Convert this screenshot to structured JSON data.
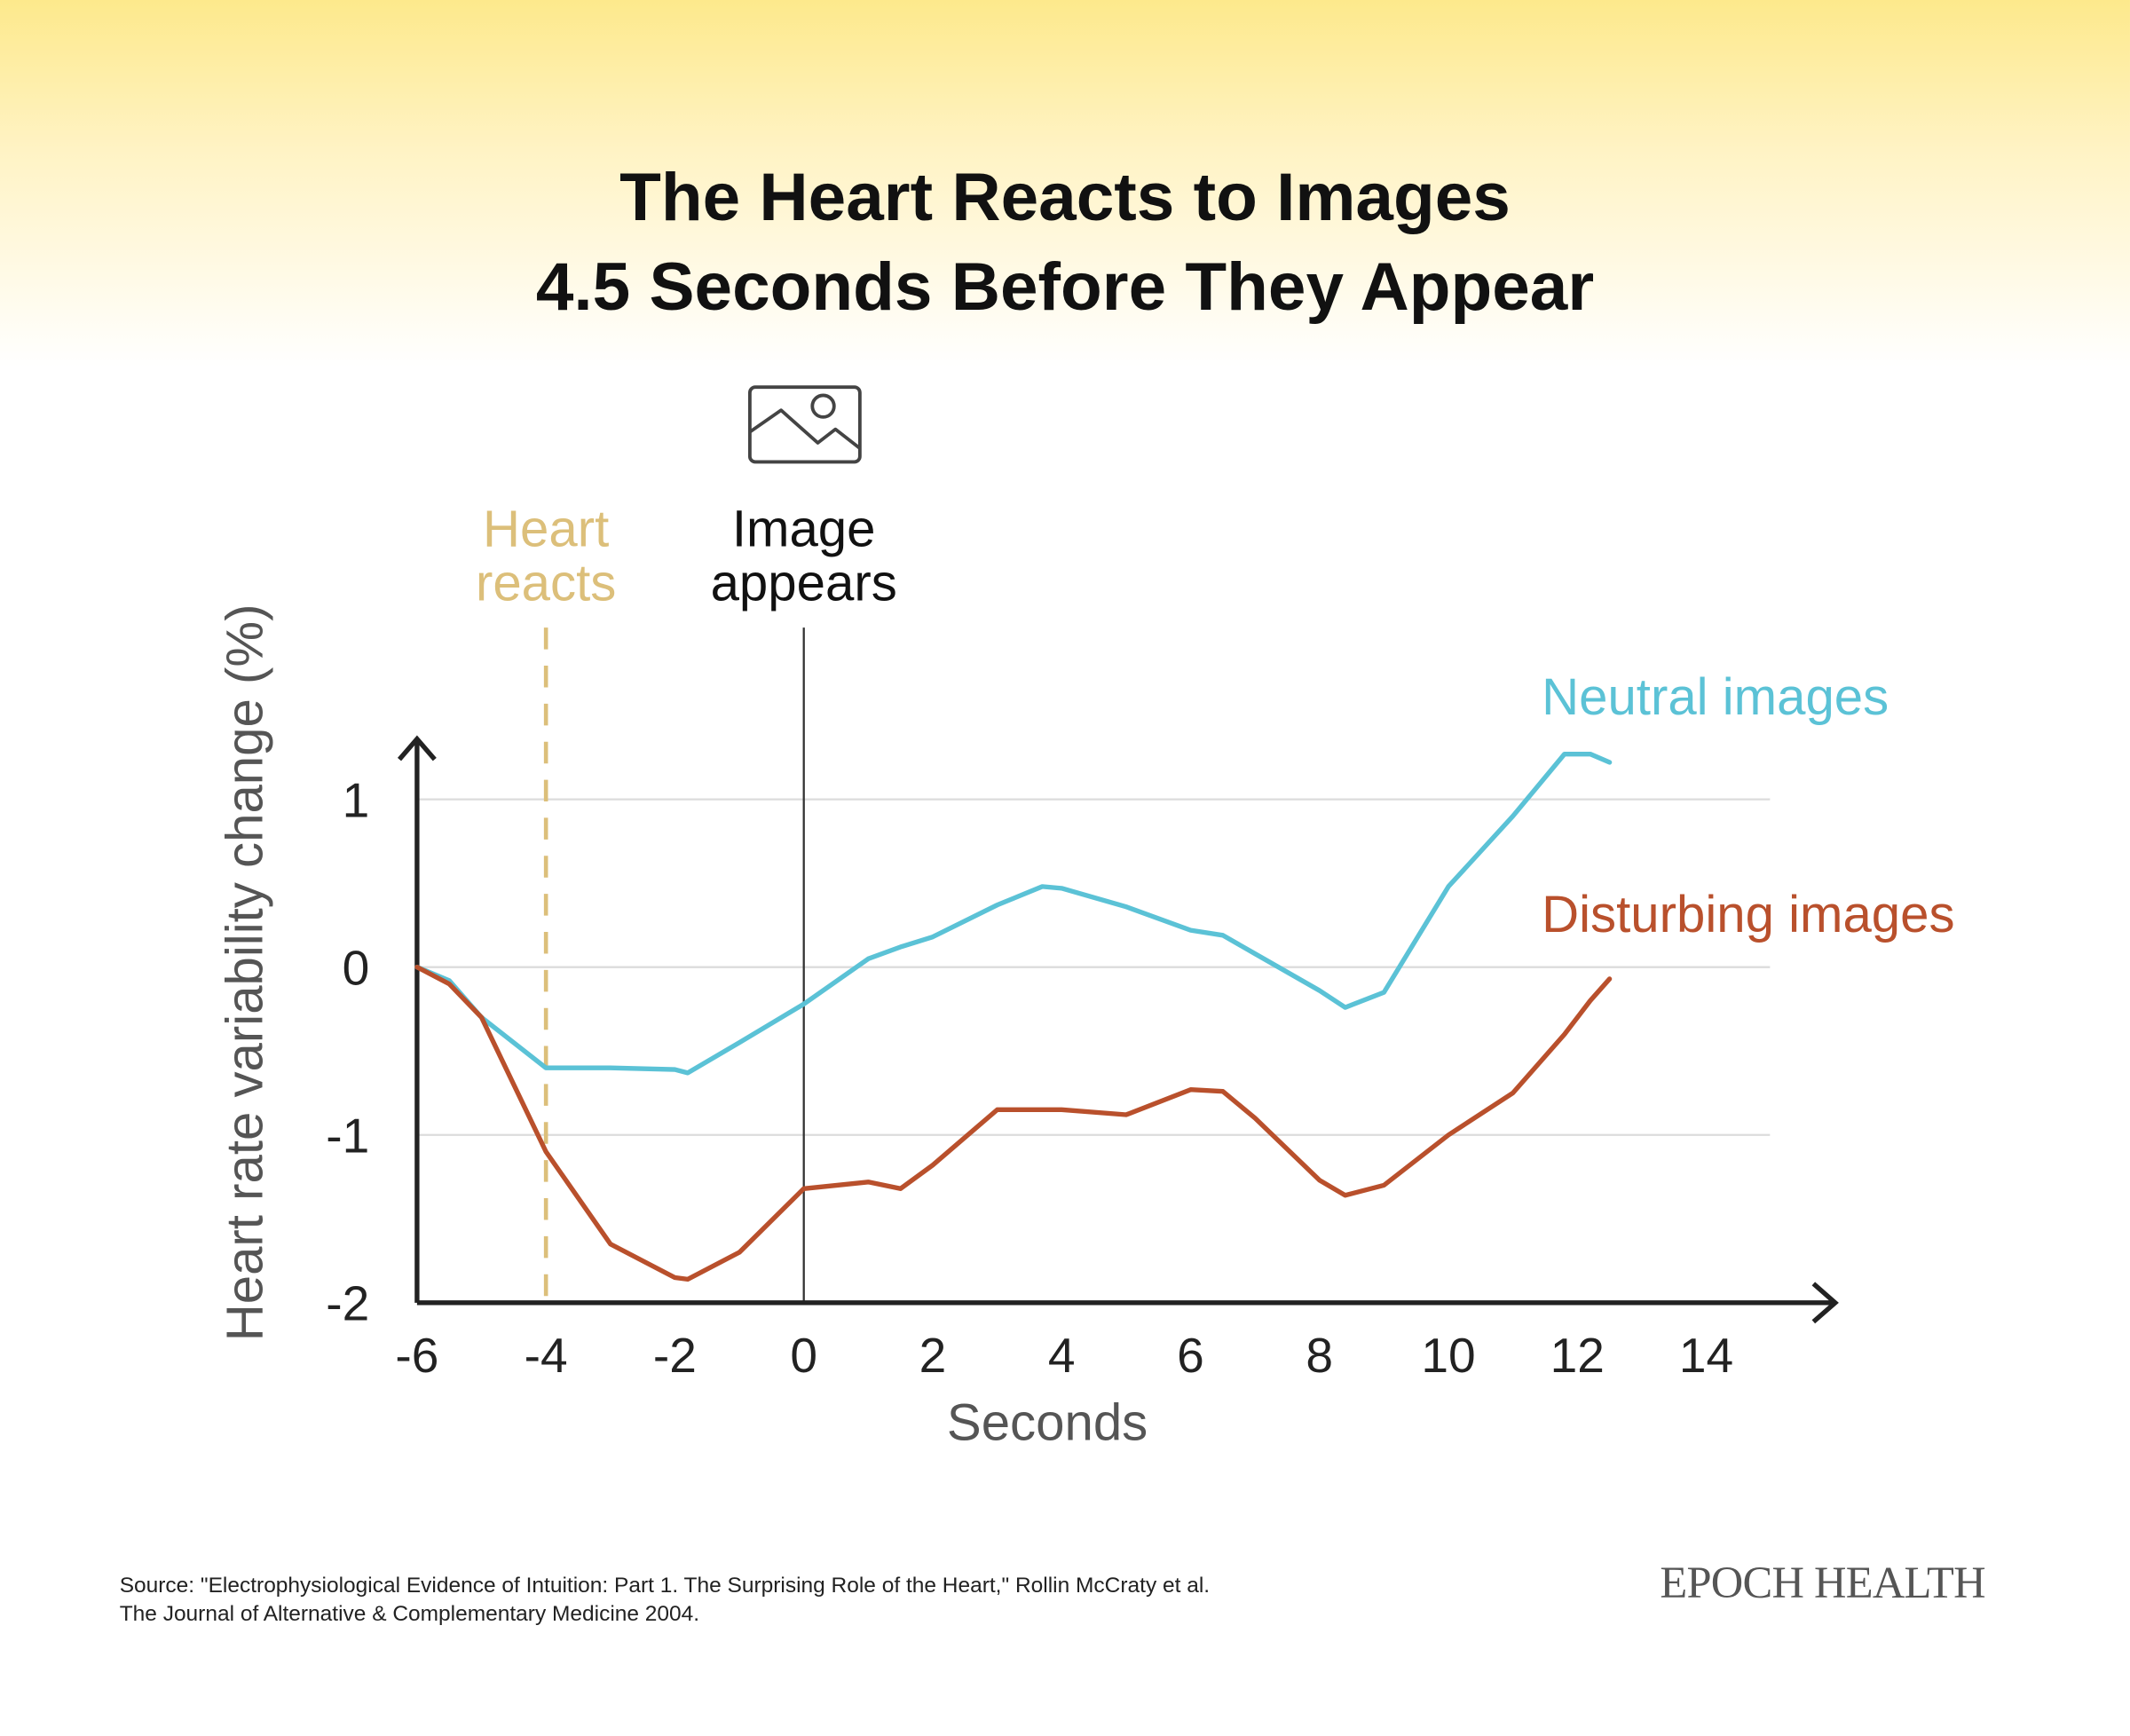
{
  "chart_data": {
    "type": "line",
    "title": "The Heart Reacts to Images\n4.5 Seconds Before They Appear",
    "x_label": "Seconds",
    "y_label": "Heart rate variability change (%)",
    "x": [
      -6,
      -5.5,
      -5,
      -4,
      -3,
      -2,
      -1.8,
      -1,
      0,
      1,
      1.5,
      2,
      3,
      3.7,
      4,
      5,
      6,
      6.5,
      7,
      8,
      8.4,
      9,
      10,
      11,
      11.8,
      12.2,
      12.5
    ],
    "series": [
      {
        "name": "Neutral images",
        "color": "#5bc2d6",
        "values": [
          0,
          -0.08,
          -0.3,
          -0.6,
          -0.6,
          -0.61,
          -0.63,
          -0.45,
          -0.22,
          0.05,
          0.12,
          0.18,
          0.37,
          0.48,
          0.47,
          0.36,
          0.22,
          0.19,
          0.08,
          -0.14,
          -0.24,
          -0.15,
          0.48,
          0.9,
          1.27,
          1.27,
          1.22
        ]
      },
      {
        "name": "Disturbing images",
        "color": "#b9502c",
        "values": [
          0,
          -0.1,
          -0.3,
          -1.1,
          -1.65,
          -1.85,
          -1.86,
          -1.7,
          -1.32,
          -1.28,
          -1.32,
          -1.18,
          -0.85,
          -0.85,
          -0.85,
          -0.88,
          -0.73,
          -0.74,
          -0.9,
          -1.27,
          -1.36,
          -1.3,
          -1.0,
          -0.75,
          -0.4,
          -0.2,
          -0.07
        ]
      }
    ],
    "xlim": [
      -6,
      16
    ],
    "ylim": [
      -2,
      1.4
    ],
    "xticks": [
      -6,
      -4,
      -2,
      0,
      2,
      4,
      6,
      8,
      10,
      12,
      14
    ],
    "yticks": [
      -2,
      -1,
      0,
      1
    ],
    "grid": true,
    "annotations": [
      {
        "text": "Heart\nreacts",
        "x": -4,
        "color": "#dcbf7a",
        "style": "dashed"
      },
      {
        "text": "Image\nappears",
        "x": 0,
        "color": "#333333",
        "style": "solid"
      }
    ]
  },
  "source": "Source: \"Electrophysiological Evidence of Intuition: Part 1. The Surprising Role of the Heart,\" Rollin McCraty et al.\nThe Journal of Alternative & Complementary Medicine 2004.",
  "logo": "EPOCH HEALTH"
}
